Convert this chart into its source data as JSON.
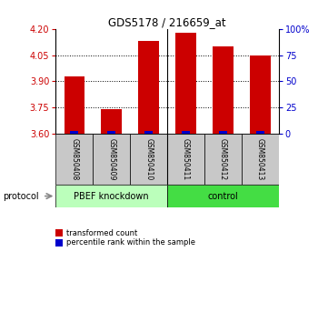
{
  "title": "GDS5178 / 216659_at",
  "samples": [
    "GSM850408",
    "GSM850409",
    "GSM850410",
    "GSM850411",
    "GSM850412",
    "GSM850413"
  ],
  "red_values": [
    3.93,
    3.74,
    4.13,
    4.18,
    4.1,
    4.05
  ],
  "blue_percentiles": [
    2.5,
    2.0,
    2.5,
    2.5,
    2.5,
    2.5
  ],
  "y_min": 3.6,
  "y_max": 4.2,
  "y_ticks": [
    3.6,
    3.75,
    3.9,
    4.05,
    4.2
  ],
  "y_right_ticks": [
    0,
    25,
    50,
    75,
    100
  ],
  "y_right_labels": [
    "0",
    "25",
    "50",
    "75",
    "100%"
  ],
  "bar_width": 0.55,
  "blue_bar_width": 0.22,
  "red_color": "#cc0000",
  "blue_color": "#0000cc",
  "left_axis_color": "#cc0000",
  "right_axis_color": "#0000cc",
  "protocol_label": "protocol",
  "legend_items": [
    {
      "color": "#cc0000",
      "label": "transformed count"
    },
    {
      "color": "#0000cc",
      "label": "percentile rank within the sample"
    }
  ],
  "sample_bg_color": "#c8c8c8",
  "group1_color": "#bbffbb",
  "group2_color": "#44dd44",
  "group1_label": "PBEF knockdown",
  "group2_label": "control"
}
